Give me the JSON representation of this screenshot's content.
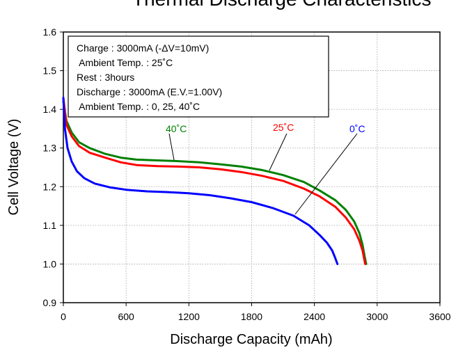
{
  "chart_data": {
    "type": "line",
    "title": "Thermal Discharge Characteristics",
    "xlabel": "Discharge Capacity (mAh)",
    "ylabel": "Cell Voltage (V)",
    "xlim": [
      0,
      3600
    ],
    "ylim": [
      0.9,
      1.6
    ],
    "xticks": [
      0,
      600,
      1200,
      1800,
      2400,
      3000,
      3600
    ],
    "yticks": [
      0.9,
      1.0,
      1.1,
      1.2,
      1.3,
      1.4,
      1.5,
      1.6
    ],
    "xtick_labels": [
      "0",
      "600",
      "1200",
      "1800",
      "2400",
      "3000",
      "3600"
    ],
    "ytick_labels": [
      "0.9",
      "1.0",
      "1.1",
      "1.2",
      "1.3",
      "1.4",
      "1.5",
      "1.6"
    ],
    "grid": true,
    "conditions": [
      "Charge : 3000mA (-ΔV=10mV)",
      " Ambient Temp. : 25˚C",
      "Rest : 3hours",
      "Discharge : 3000mA (E.V.=1.00V)",
      " Ambient Temp. : 0, 25, 40˚C"
    ],
    "series": [
      {
        "name": "40˚C",
        "color": "#008000",
        "x": [
          0,
          30,
          80,
          150,
          250,
          400,
          550,
          700,
          900,
          1100,
          1300,
          1500,
          1700,
          1900,
          2100,
          2300,
          2450,
          2600,
          2700,
          2780,
          2830,
          2860,
          2880,
          2895
        ],
        "y": [
          1.42,
          1.37,
          1.34,
          1.315,
          1.3,
          1.285,
          1.275,
          1.27,
          1.268,
          1.266,
          1.263,
          1.258,
          1.252,
          1.243,
          1.23,
          1.212,
          1.19,
          1.165,
          1.14,
          1.11,
          1.08,
          1.05,
          1.02,
          1.0
        ]
      },
      {
        "name": "25˚C",
        "color": "#ff0000",
        "x": [
          0,
          30,
          80,
          150,
          250,
          400,
          550,
          700,
          900,
          1100,
          1300,
          1500,
          1700,
          1900,
          2100,
          2300,
          2450,
          2600,
          2700,
          2780,
          2830,
          2860,
          2875,
          2885
        ],
        "y": [
          1.43,
          1.36,
          1.33,
          1.305,
          1.288,
          1.275,
          1.263,
          1.256,
          1.253,
          1.252,
          1.25,
          1.245,
          1.238,
          1.228,
          1.215,
          1.195,
          1.175,
          1.148,
          1.12,
          1.09,
          1.06,
          1.035,
          1.015,
          1.0
        ]
      },
      {
        "name": "0˚C",
        "color": "#0000ff",
        "x": [
          0,
          15,
          40,
          80,
          130,
          200,
          300,
          450,
          600,
          800,
          1000,
          1200,
          1400,
          1600,
          1800,
          2000,
          2200,
          2350,
          2450,
          2520,
          2570,
          2600,
          2620
        ],
        "y": [
          1.43,
          1.35,
          1.3,
          1.265,
          1.24,
          1.222,
          1.208,
          1.198,
          1.192,
          1.188,
          1.186,
          1.183,
          1.178,
          1.17,
          1.16,
          1.145,
          1.125,
          1.1,
          1.075,
          1.055,
          1.035,
          1.015,
          1.0
        ]
      }
    ]
  }
}
